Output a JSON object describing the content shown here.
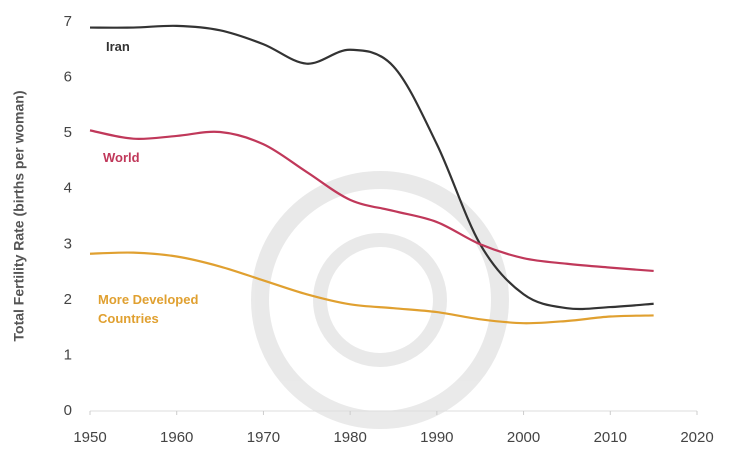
{
  "chart_data": {
    "type": "line",
    "y_label": "Total Fertility Rate (births per woman)",
    "x": [
      1950,
      1955,
      1960,
      1965,
      1970,
      1975,
      1980,
      1985,
      1990,
      1995,
      2000,
      2005,
      2010,
      2015
    ],
    "series": [
      {
        "name": "Iran",
        "color": "#333333",
        "values": [
          6.9,
          6.9,
          6.93,
          6.85,
          6.6,
          6.25,
          6.5,
          6.2,
          4.8,
          3.0,
          2.1,
          1.85,
          1.87,
          1.93
        ]
      },
      {
        "name": "World",
        "color": "#c0385a",
        "values": [
          5.05,
          4.9,
          4.95,
          5.02,
          4.8,
          4.3,
          3.8,
          3.6,
          3.4,
          3.0,
          2.75,
          2.65,
          2.58,
          2.52
        ]
      },
      {
        "name": "More Developed Countries",
        "color": "#e0a030",
        "values": [
          2.83,
          2.85,
          2.78,
          2.6,
          2.35,
          2.1,
          1.92,
          1.85,
          1.78,
          1.65,
          1.58,
          1.62,
          1.7,
          1.72
        ]
      }
    ],
    "xlim": [
      1950,
      2020
    ],
    "xticks": [
      1950,
      1960,
      1970,
      1980,
      1990,
      2000,
      2010,
      2020
    ],
    "ylim": [
      0,
      7
    ],
    "yticks": [
      0,
      1,
      2,
      3,
      4,
      5,
      6,
      7
    ],
    "grid": false
  }
}
